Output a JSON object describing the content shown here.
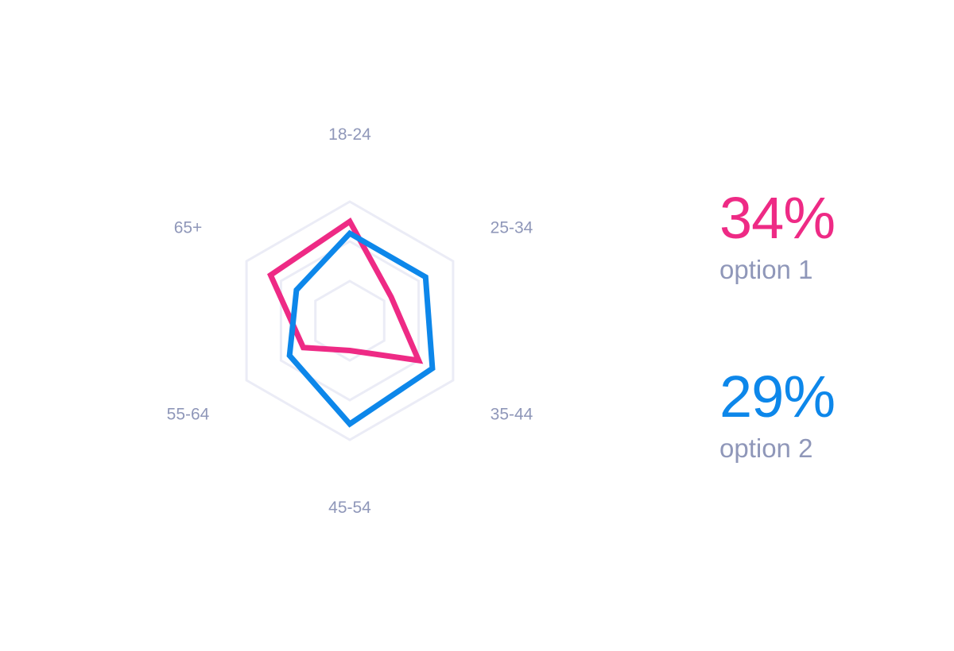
{
  "chart_data": {
    "type": "radar",
    "axes": [
      "18-24",
      "25-34",
      "35-44",
      "45-54",
      "55-64",
      "65+"
    ],
    "grid_levels": [
      1,
      2,
      3
    ],
    "series": [
      {
        "name": "option 1",
        "value_label": "34%",
        "color": "#ee2a85",
        "values": [
          2.5,
          1.2,
          2.0,
          0.75,
          1.35,
          2.3
        ]
      },
      {
        "name": "option 2",
        "value_label": "29%",
        "color": "#0d87ea",
        "values": [
          2.2,
          2.2,
          2.4,
          2.6,
          1.75,
          1.55
        ]
      }
    ],
    "grid_color": "#ebecf6",
    "label_color": "#8f97b9"
  }
}
